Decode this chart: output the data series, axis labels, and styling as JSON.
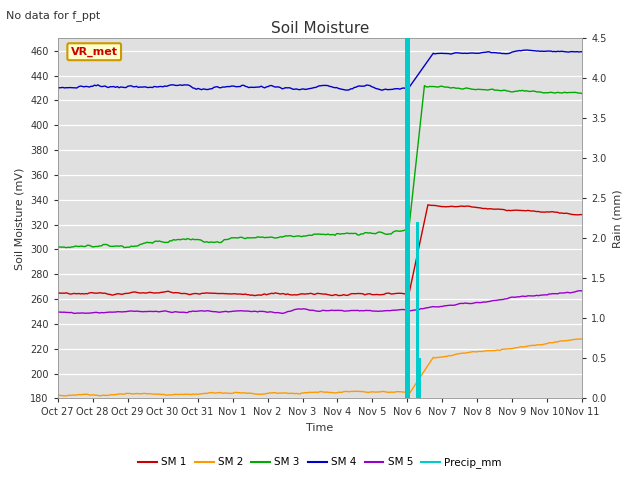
{
  "title": "Soil Moisture",
  "subtitle": "No data for f_ppt",
  "xlabel": "Time",
  "ylabel_left": "Soil Moisture (mV)",
  "ylabel_right": "Rain (mm)",
  "ylim_left": [
    180,
    470
  ],
  "ylim_right": [
    0.0,
    4.5
  ],
  "yticks_left": [
    180,
    200,
    220,
    240,
    260,
    280,
    300,
    320,
    340,
    360,
    380,
    400,
    420,
    440,
    460
  ],
  "yticks_right": [
    0.0,
    0.5,
    1.0,
    1.5,
    2.0,
    2.5,
    3.0,
    3.5,
    4.0,
    4.5
  ],
  "bg_color": "#e0e0e0",
  "line_colors": {
    "SM1": "#cc0000",
    "SM2": "#ff9900",
    "SM3": "#00aa00",
    "SM4": "#0000cc",
    "SM5": "#9900cc",
    "Precip": "#00cccc"
  },
  "legend_label": "VR_met",
  "x_tick_labels": [
    "Oct 27",
    "Oct 28",
    "Oct 29",
    "Oct 30",
    "Oct 31",
    "Nov 1",
    "Nov 2",
    "Nov 3",
    "Nov 4",
    "Nov 5",
    "Nov 6",
    "Nov 7",
    "Nov 8",
    "Nov 9",
    "Nov 10",
    "Nov 11"
  ],
  "x_tick_labels_compact": [
    "Oct 27",
    "Oct 28",
    "Oct 29",
    "Oct 30",
    "Oct 31",
    "Nov 1",
    "Nov 2",
    "Nov 3",
    "Nov 4",
    "Nov 5",
    "Nov 6",
    "Nov 7",
    "Nov 8",
    "Nov 9",
    "Nov 10",
    "Nov 11"
  ]
}
